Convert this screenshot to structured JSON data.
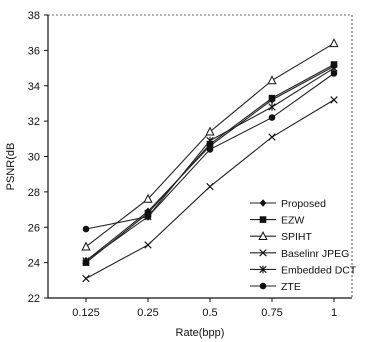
{
  "chart_data": {
    "type": "line",
    "xlabel": "Rate(bpp)",
    "ylabel": "PSNR(dB",
    "categories": [
      "0.125",
      "0.25",
      "0.5",
      "0.75",
      "1"
    ],
    "ylim": [
      22,
      38
    ],
    "yticks": [
      "22",
      "24",
      "26",
      "28",
      "30",
      "32",
      "34",
      "36",
      "38"
    ],
    "grid": false,
    "legend_position": "bottom-right",
    "series": [
      {
        "name": "Proposed",
        "marker": "diamond",
        "values": [
          24.1,
          26.9,
          30.6,
          33.2,
          35.1
        ]
      },
      {
        "name": "EZW",
        "marker": "square",
        "values": [
          24.0,
          26.8,
          30.7,
          33.3,
          35.2
        ]
      },
      {
        "name": "SPIHT",
        "marker": "triangle",
        "values": [
          24.9,
          27.6,
          31.4,
          34.3,
          36.4
        ]
      },
      {
        "name": "Baselinr JPEG",
        "marker": "x",
        "values": [
          23.1,
          25.0,
          28.3,
          31.1,
          33.2
        ]
      },
      {
        "name": "Embedded DCT",
        "marker": "asterisk",
        "values": [
          24.1,
          26.6,
          30.9,
          32.8,
          35.0
        ]
      },
      {
        "name": "ZTE",
        "marker": "circle",
        "values": [
          25.9,
          26.6,
          30.4,
          32.2,
          34.7
        ]
      }
    ]
  }
}
